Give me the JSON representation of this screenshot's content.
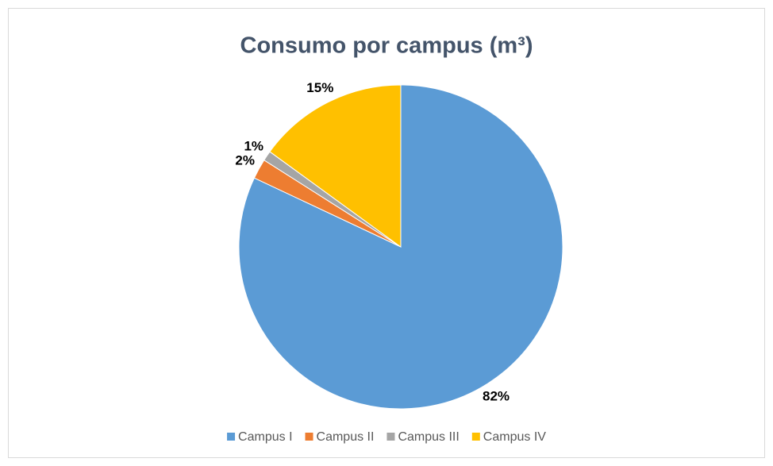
{
  "chart_data": {
    "type": "pie",
    "title": "Consumo por campus (m³)",
    "categories": [
      "Campus I",
      "Campus II",
      "Campus III",
      "Campus IV"
    ],
    "values": [
      82,
      2,
      1,
      15
    ],
    "value_labels": [
      "82%",
      "2%",
      "1%",
      "15%"
    ],
    "colors": [
      "#5b9bd5",
      "#ed7d31",
      "#a5a5a5",
      "#ffc000"
    ],
    "legend": "bottom"
  }
}
